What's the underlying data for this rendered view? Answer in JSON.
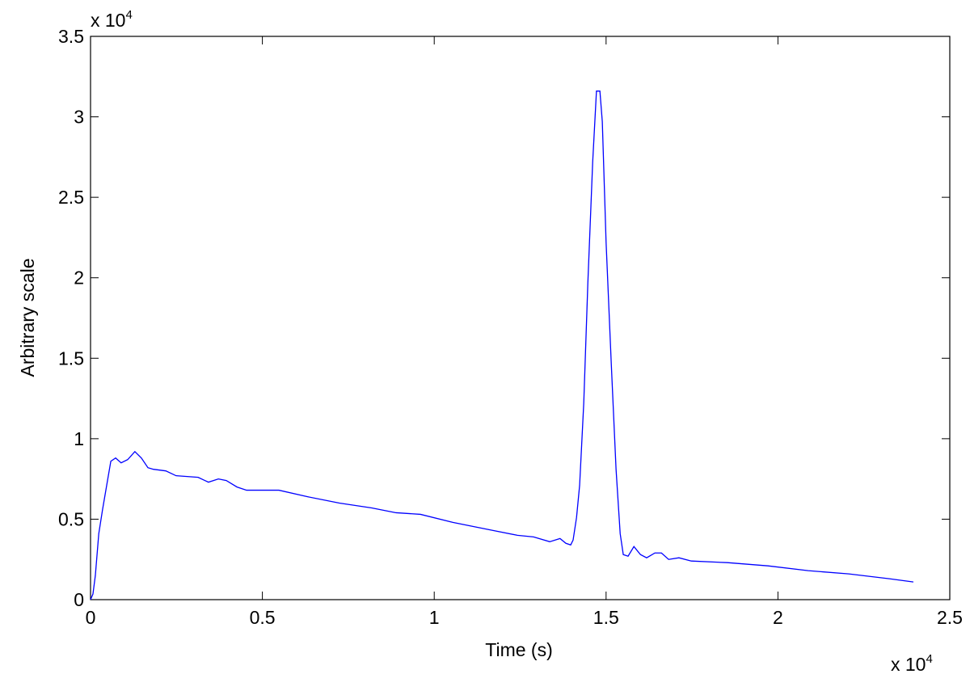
{
  "chart_data": {
    "type": "line",
    "x_label": "Time (s)",
    "y_label": "Arbitrary scale",
    "x_multiplier": {
      "base": "x 10",
      "exponent": "4"
    },
    "y_multiplier": {
      "base": "x 10",
      "exponent": "4"
    },
    "xlim": [
      0,
      2.5
    ],
    "ylim": [
      0,
      3.5
    ],
    "xticks": [
      0,
      0.5,
      1,
      1.5,
      2,
      2.5
    ],
    "yticks": [
      0,
      0.5,
      1,
      1.5,
      2,
      2.5,
      3,
      3.5
    ],
    "x": [
      0,
      0.007,
      0.014,
      0.024,
      0.035,
      0.047,
      0.059,
      0.073,
      0.089,
      0.108,
      0.129,
      0.148,
      0.167,
      0.183,
      0.219,
      0.249,
      0.313,
      0.343,
      0.372,
      0.395,
      0.426,
      0.454,
      0.548,
      0.63,
      0.724,
      0.818,
      0.889,
      0.96,
      1.054,
      1.124,
      1.171,
      1.242,
      1.289,
      1.336,
      1.366,
      1.383,
      1.397,
      1.404,
      1.414,
      1.423,
      1.435,
      1.447,
      1.461,
      1.472,
      1.482,
      1.489,
      1.5,
      1.515,
      1.529,
      1.541,
      1.55,
      1.564,
      1.581,
      1.6,
      1.618,
      1.642,
      1.661,
      1.682,
      1.712,
      1.748,
      1.853,
      1.971,
      2.088,
      2.206,
      2.324,
      2.394
    ],
    "series": [
      {
        "color": "#0000ff",
        "values": [
          0,
          0.035,
          0.15,
          0.41,
          0.56,
          0.71,
          0.86,
          0.88,
          0.85,
          0.87,
          0.92,
          0.88,
          0.82,
          0.81,
          0.8,
          0.77,
          0.76,
          0.73,
          0.75,
          0.74,
          0.7,
          0.68,
          0.68,
          0.64,
          0.6,
          0.57,
          0.54,
          0.53,
          0.48,
          0.45,
          0.43,
          0.4,
          0.39,
          0.36,
          0.38,
          0.35,
          0.34,
          0.37,
          0.51,
          0.71,
          1.22,
          1.97,
          2.72,
          3.16,
          3.16,
          2.97,
          2.22,
          1.47,
          0.81,
          0.41,
          0.28,
          0.27,
          0.33,
          0.28,
          0.26,
          0.29,
          0.29,
          0.25,
          0.26,
          0.24,
          0.23,
          0.21,
          0.18,
          0.16,
          0.13,
          0.11
        ]
      }
    ]
  }
}
